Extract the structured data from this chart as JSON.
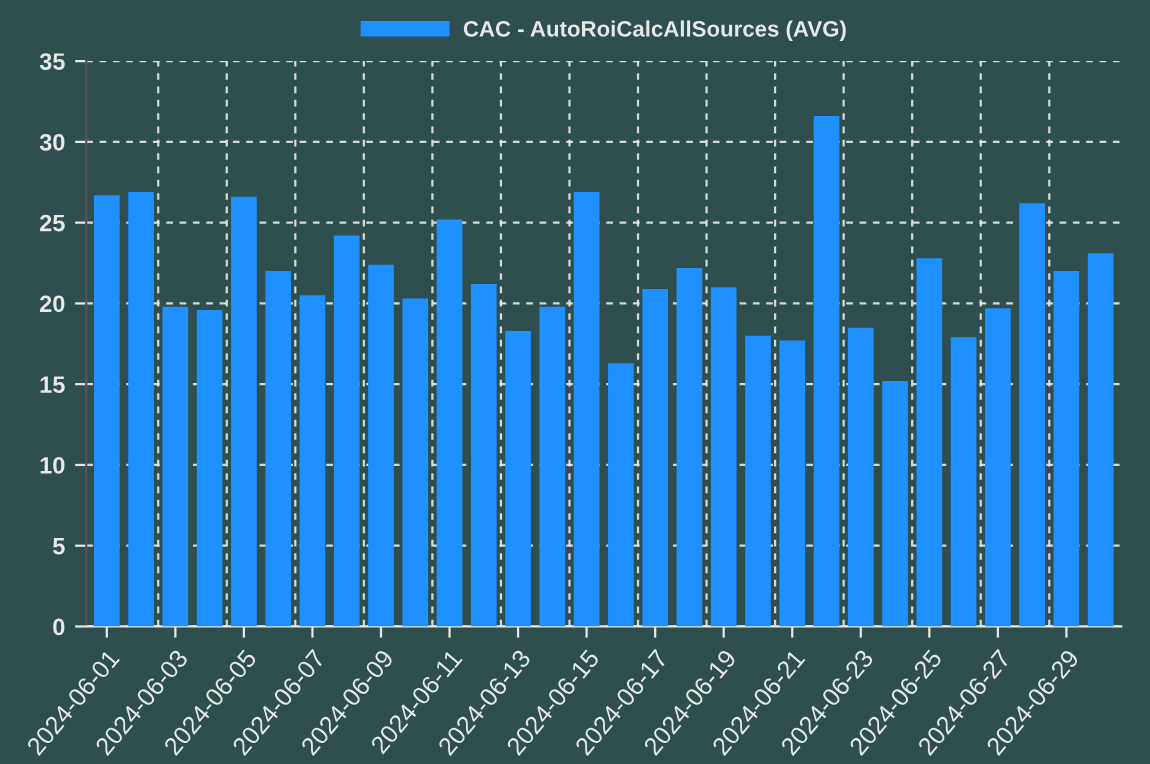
{
  "chart_data": {
    "type": "bar",
    "categories": [
      "2024-06-01",
      null,
      "2024-06-03",
      null,
      "2024-06-05",
      null,
      "2024-06-07",
      null,
      "2024-06-09",
      null,
      "2024-06-11",
      null,
      "2024-06-13",
      null,
      "2024-06-15",
      null,
      "2024-06-17",
      null,
      "2024-06-19",
      null,
      "2024-06-21",
      null,
      "2024-06-23",
      null,
      "2024-06-25",
      null,
      "2024-06-27",
      null,
      "2024-06-29",
      null
    ],
    "series": [
      {
        "name": "CAC - AutoRoiCalcAllSources (AVG)",
        "color": "#1e90ff",
        "values": [
          26.7,
          26.9,
          19.8,
          19.6,
          26.6,
          22.0,
          20.5,
          24.2,
          22.4,
          20.3,
          25.2,
          21.2,
          18.3,
          19.8,
          26.9,
          16.3,
          20.9,
          22.2,
          21.0,
          18.0,
          17.7,
          31.6,
          18.5,
          15.2,
          22.8,
          17.9,
          19.7,
          26.2,
          22.0,
          23.1
        ]
      }
    ],
    "ylim": [
      0,
      35
    ],
    "yticks": [
      0,
      5,
      10,
      15,
      20,
      25,
      30,
      35
    ],
    "grid": true,
    "legend": "top"
  }
}
